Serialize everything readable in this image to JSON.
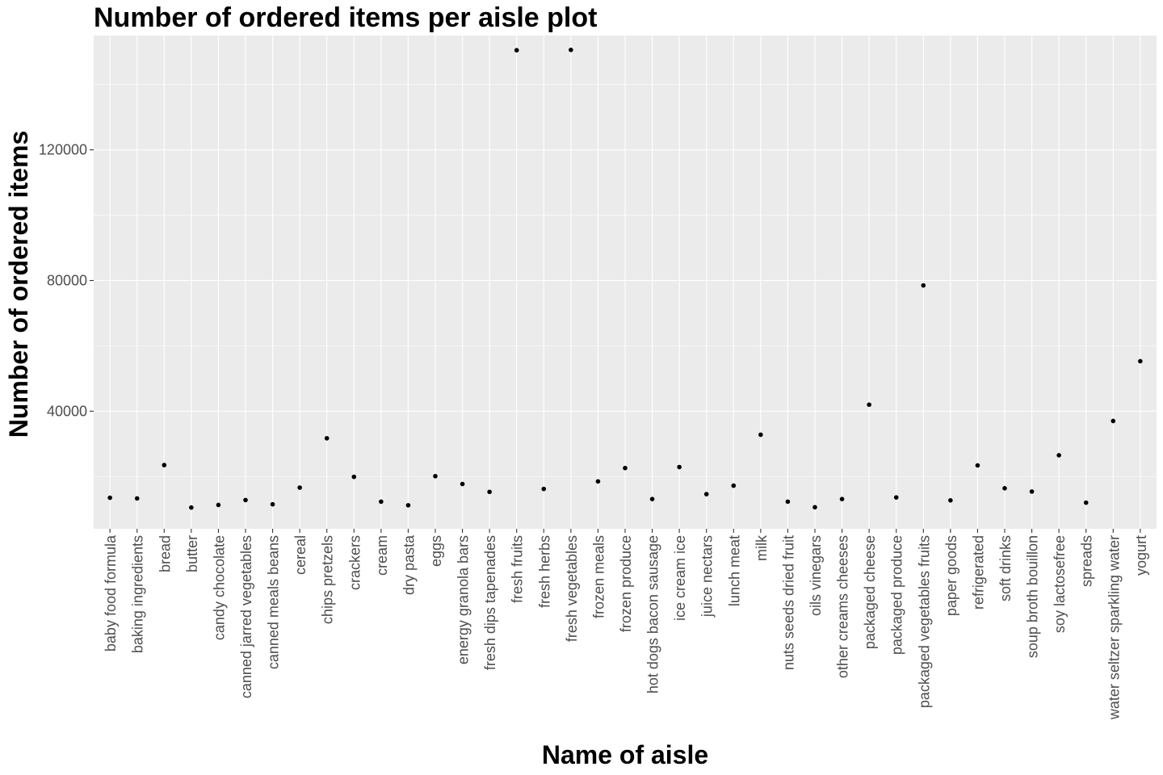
{
  "chart_data": {
    "type": "scatter",
    "title": "Number of ordered items per aisle plot",
    "xlabel": "Name of aisle",
    "ylabel": "Number of ordered items",
    "ylim": [
      4000,
      155000
    ],
    "y_ticks": [
      40000,
      80000,
      120000
    ],
    "y_tick_labels": [
      "40000",
      "80000",
      "120000"
    ],
    "grid": true,
    "point_color": "#000000",
    "panel_color": "#EBEBEB",
    "categories": [
      "baby food formula",
      "baking ingredients",
      "bread",
      "butter",
      "candy chocolate",
      "canned jarred vegetables",
      "canned meals beans",
      "cereal",
      "chips pretzels",
      "crackers",
      "cream",
      "dry pasta",
      "eggs",
      "energy granola bars",
      "fresh dips tapenades",
      "fresh fruits",
      "fresh herbs",
      "fresh vegetables",
      "frozen meals",
      "frozen produce",
      "hot dogs bacon sausage",
      "ice cream ice",
      "juice nectars",
      "lunch meat",
      "milk",
      "nuts seeds dried fruit",
      "oils vinegars",
      "other creams cheeses",
      "packaged cheese",
      "packaged produce",
      "packaged vegetables fruits",
      "paper goods",
      "refrigerated",
      "soft drinks",
      "soup broth bouillon",
      "soy lactosefree",
      "spreads",
      "water seltzer sparkling water",
      "yogurt"
    ],
    "values": [
      13500,
      13300,
      23500,
      10500,
      11300,
      12800,
      11500,
      16600,
      31700,
      19900,
      12300,
      11200,
      20100,
      17700,
      15300,
      150500,
      16200,
      150600,
      18500,
      22600,
      13100,
      22900,
      14600,
      17200,
      32800,
      12300,
      10600,
      13100,
      42000,
      13600,
      78500,
      12700,
      23400,
      16400,
      15400,
      26500,
      12000,
      37000,
      55300
    ]
  }
}
